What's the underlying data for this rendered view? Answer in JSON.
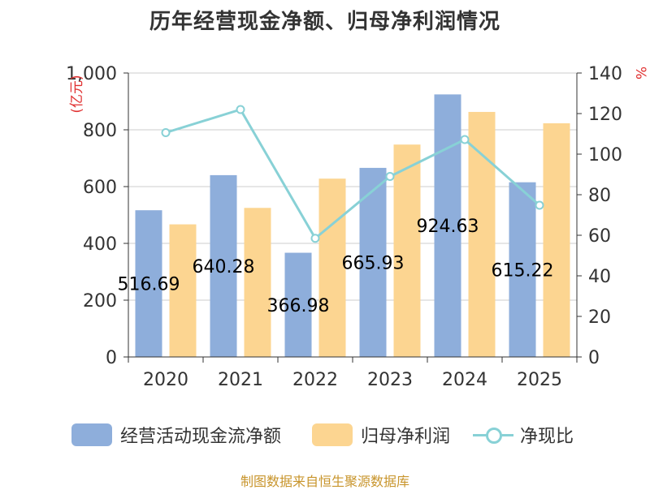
{
  "chart_title": "历年经营现金净额、归母净利润情况",
  "source_text": "制图数据来自恒生聚源数据库",
  "colors": {
    "cash": "#8eaedb",
    "profit": "#fcd591",
    "ratio": "#88d1d6",
    "unit": "#e03030",
    "source": "#c8952c"
  },
  "chart_data": {
    "type": "bar",
    "categories": [
      "2020",
      "2021",
      "2022",
      "2023",
      "2024",
      "2025"
    ],
    "series": [
      {
        "name": "经营活动现金流净额",
        "kind": "bar",
        "axis": "left",
        "values": [
          516.69,
          640.28,
          366.98,
          665.93,
          924.63,
          615.22
        ],
        "labels": [
          "516.69",
          "640.28",
          "366.98",
          "665.93",
          "924.63",
          "615.22"
        ]
      },
      {
        "name": "归母净利润",
        "kind": "bar",
        "axis": "left",
        "values": [
          467,
          525,
          628,
          748,
          863,
          823
        ]
      },
      {
        "name": "净现比",
        "kind": "line",
        "axis": "right",
        "values": [
          110.6,
          122.0,
          58.5,
          89.0,
          107.2,
          74.8
        ]
      }
    ],
    "y_left": {
      "label": "(亿元)",
      "min": 0,
      "max": 1000,
      "ticks": [
        "0",
        "200",
        "400",
        "600",
        "800",
        "1,000"
      ]
    },
    "y_right": {
      "label": "%",
      "min": 0,
      "max": 140,
      "ticks": [
        "0",
        "20",
        "40",
        "60",
        "80",
        "100",
        "120",
        "140"
      ]
    },
    "legend": [
      "经营活动现金流净额",
      "归母净利润",
      "净现比"
    ]
  }
}
